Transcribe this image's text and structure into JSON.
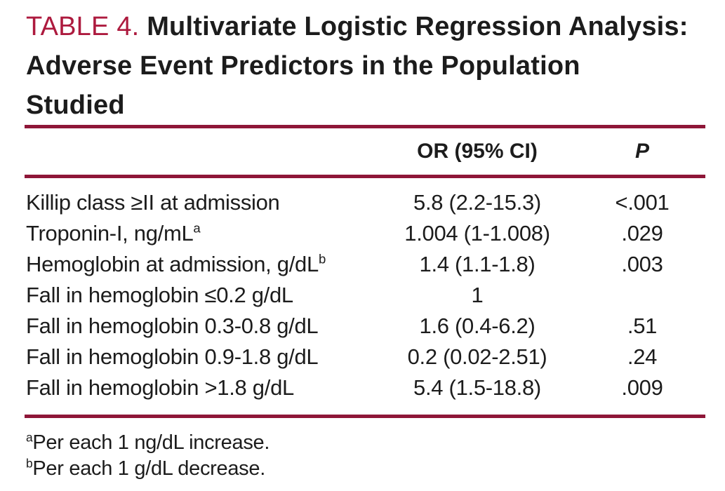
{
  "page": {
    "label": "TABLE 4.",
    "title_line1": "Multivariate Logistic Regression Analysis:",
    "title_line2": "Adverse Event Predictors in the Population",
    "title_line3": "Studied",
    "columns": {
      "or": "OR (95% CI)",
      "p": "P"
    },
    "rows": [
      {
        "predictor": "Killip class ≥II at admission",
        "sup": "",
        "or": "5.8 (2.2-15.3)",
        "p": "<.001"
      },
      {
        "predictor": "Troponin-I, ng/mL",
        "sup": "a",
        "or": "1.004 (1-1.008)",
        "p": ".029"
      },
      {
        "predictor": "Hemoglobin at admission, g/dL",
        "sup": "b",
        "or": "1.4 (1.1-1.8)",
        "p": ".003"
      },
      {
        "predictor": "Fall in hemoglobin ≤0.2 g/dL",
        "sup": "",
        "or": "1",
        "p": ""
      },
      {
        "predictor": "Fall in hemoglobin 0.3-0.8 g/dL",
        "sup": "",
        "or": "1.6 (0.4-6.2)",
        "p": ".51"
      },
      {
        "predictor": "Fall in hemoglobin 0.9-1.8 g/dL",
        "sup": "",
        "or": "0.2 (0.02-2.51)",
        "p": ".24"
      },
      {
        "predictor": "Fall in hemoglobin >1.8 g/dL",
        "sup": "",
        "or": "5.4 (1.5-18.8)",
        "p": ".009"
      }
    ],
    "footnotes": [
      {
        "marker": "a",
        "text": "Per each 1 ng/dL increase."
      },
      {
        "marker": "b",
        "text": "Per each 1 g/dL decrease."
      }
    ],
    "colors": {
      "label": "#ad1a3e",
      "rule": "#8e1638",
      "text": "#1c1c1c"
    }
  }
}
